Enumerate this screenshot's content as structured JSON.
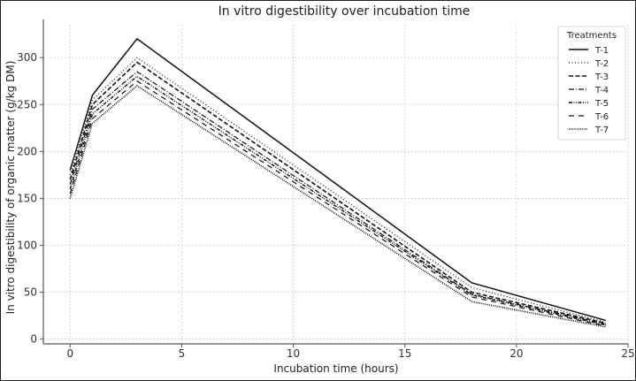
{
  "chart_data": {
    "type": "line",
    "title": "In vitro digestibility over incubation time",
    "xlabel": "Incubation time (hours)",
    "ylabel": "In vitro digestibility of organic matter (g/kg DM)",
    "x": [
      0,
      1,
      3,
      18,
      24
    ],
    "xlim": [
      -1.2,
      25
    ],
    "ylim": [
      -5,
      335
    ],
    "xticks": [
      0,
      5,
      10,
      15,
      20,
      25
    ],
    "yticks": [
      0,
      50,
      100,
      150,
      200,
      250,
      300
    ],
    "grid": true,
    "legend": {
      "title": "Treatments",
      "placement": "top-right"
    },
    "series": [
      {
        "name": "T-1",
        "style": "solid",
        "values": [
          180,
          260,
          320,
          60,
          20
        ]
      },
      {
        "name": "T-2",
        "style": "dotted",
        "values": [
          175,
          255,
          300,
          55,
          18
        ]
      },
      {
        "name": "T-3",
        "style": "dashed",
        "values": [
          170,
          250,
          295,
          50,
          17
        ]
      },
      {
        "name": "T-4",
        "style": "dashdot",
        "values": [
          165,
          245,
          285,
          48,
          16
        ]
      },
      {
        "name": "T-5",
        "style": "dashdotdot",
        "values": [
          160,
          240,
          280,
          47,
          15
        ]
      },
      {
        "name": "T-6",
        "style": "loosedash",
        "values": [
          155,
          235,
          275,
          45,
          14
        ]
      },
      {
        "name": "T-7",
        "style": "densedot",
        "values": [
          150,
          230,
          270,
          40,
          13
        ]
      }
    ]
  }
}
